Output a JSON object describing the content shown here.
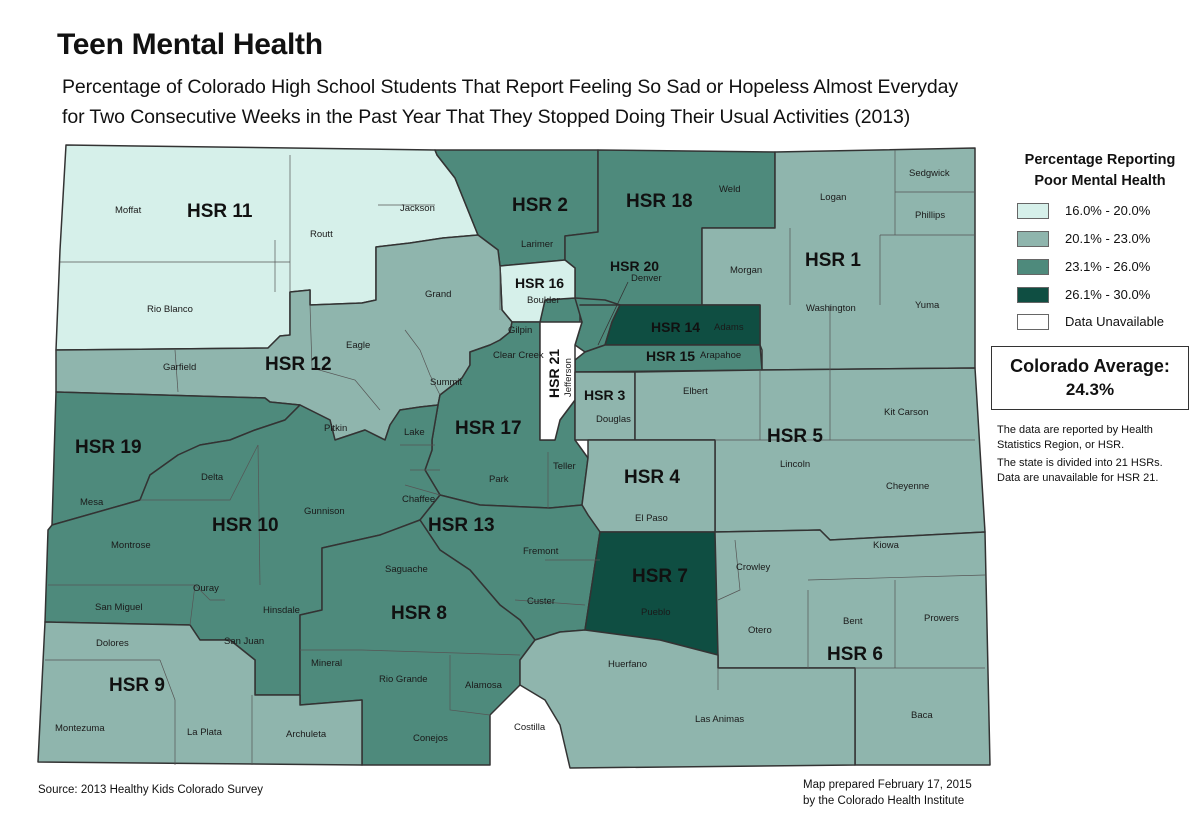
{
  "title": "Teen Mental Health",
  "subtitle_line1": "Percentage of Colorado High School Students That Report Feeling So Sad or Hopeless Almost Everyday",
  "subtitle_line2": "for Two Consecutive Weeks in the Past Year That They Stopped Doing Their Usual Activities (2013)",
  "legend": {
    "title_line1": "Percentage Reporting",
    "title_line2": "Poor Mental Health",
    "items": [
      {
        "label": "16.0% - 20.0%",
        "color": "#d6f0ea"
      },
      {
        "label": "20.1% - 23.0%",
        "color": "#8fb5ad"
      },
      {
        "label": "23.1% - 26.0%",
        "color": "#4e8a7c"
      },
      {
        "label": "26.1% - 30.0%",
        "color": "#0f4e42"
      },
      {
        "label": "Data Unavailable",
        "color": "#ffffff"
      }
    ]
  },
  "average": {
    "label": "Colorado Average:",
    "value": "24.3%"
  },
  "notes": [
    "The data are reported by Health",
    "Statistics Region, or HSR.",
    "The state is divided into 21 HSRs.",
    "Data are unavailable for HSR 21."
  ],
  "source": "Source: 2013 Healthy Kids Colorado Survey",
  "credit_line1": "Map prepared February 17, 2015",
  "credit_line2": "by the Colorado Health Institute",
  "regions": [
    {
      "name": "HSR 1",
      "category": "20.1% - 23.0%"
    },
    {
      "name": "HSR 2",
      "category": "23.1% - 26.0%"
    },
    {
      "name": "HSR 3",
      "category": "20.1% - 23.0%"
    },
    {
      "name": "HSR 4",
      "category": "20.1% - 23.0%"
    },
    {
      "name": "HSR 5",
      "category": "20.1% - 23.0%"
    },
    {
      "name": "HSR 6",
      "category": "20.1% - 23.0%"
    },
    {
      "name": "HSR 7",
      "category": "26.1% - 30.0%"
    },
    {
      "name": "HSR 8",
      "category": "23.1% - 26.0%"
    },
    {
      "name": "HSR 9",
      "category": "20.1% - 23.0%"
    },
    {
      "name": "HSR 10",
      "category": "23.1% - 26.0%"
    },
    {
      "name": "HSR 11",
      "category": "16.0% - 20.0%"
    },
    {
      "name": "HSR 12",
      "category": "20.1% - 23.0%"
    },
    {
      "name": "HSR 13",
      "category": "23.1% - 26.0%"
    },
    {
      "name": "HSR 14",
      "category": "26.1% - 30.0%"
    },
    {
      "name": "HSR 15",
      "category": "23.1% - 26.0%"
    },
    {
      "name": "HSR 16",
      "category": "16.0% - 20.0%"
    },
    {
      "name": "HSR 17",
      "category": "23.1% - 26.0%"
    },
    {
      "name": "HSR 18",
      "category": "23.1% - 26.0%"
    },
    {
      "name": "HSR 19",
      "category": "23.1% - 26.0%"
    },
    {
      "name": "HSR 20",
      "category": "23.1% - 26.0%"
    },
    {
      "name": "HSR 21",
      "category": "Data Unavailable"
    }
  ],
  "counties": [
    "Moffat",
    "Routt",
    "Jackson",
    "Larimer",
    "Weld",
    "Logan",
    "Sedgwick",
    "Phillips",
    "Rio Blanco",
    "Grand",
    "Boulder",
    "Denver",
    "Morgan",
    "Washington",
    "Yuma",
    "Gilpin",
    "Adams",
    "Eagle",
    "Garfield",
    "Clear Creek",
    "Arapahoe",
    "Summit",
    "Jefferson",
    "Douglas",
    "Elbert",
    "Kit Carson",
    "Pitkin",
    "Lake",
    "Teller",
    "Lincoln",
    "Delta",
    "Park",
    "Mesa",
    "Chaffee",
    "El Paso",
    "Cheyenne",
    "Gunnison",
    "Fremont",
    "Montrose",
    "Kiowa",
    "Saguache",
    "Crowley",
    "Ouray",
    "Custer",
    "San Miguel",
    "Pueblo",
    "Hinsdale",
    "Prowers",
    "Bent",
    "Otero",
    "Dolores",
    "San Juan",
    "Mineral",
    "Rio Grande",
    "Alamosa",
    "Huerfano",
    "Montezuma",
    "La Plata",
    "Archuleta",
    "Conejos",
    "Costilla",
    "Las Animas",
    "Baca"
  ]
}
